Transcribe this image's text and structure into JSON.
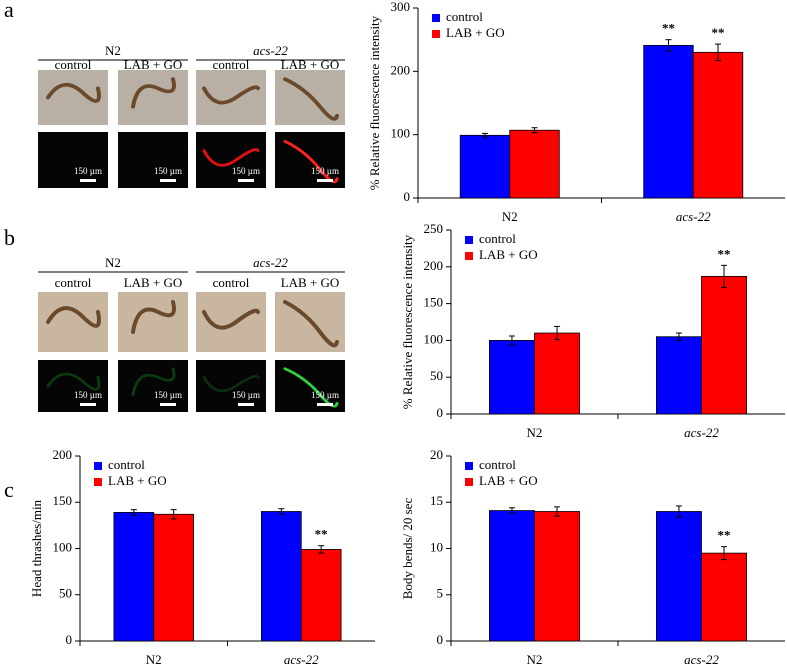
{
  "panel_labels": [
    "a",
    "b",
    "c"
  ],
  "image_panels": [
    {
      "groups": [
        "N2",
        "acs-22"
      ],
      "conditions": [
        "control",
        "LAB + GO",
        "control",
        "LAB + GO"
      ],
      "scale_labels": [
        "150 µm",
        "150 µm",
        "150 µm",
        "150 µm"
      ]
    },
    {
      "groups": [
        "N2",
        "acs-22"
      ],
      "conditions": [
        "control",
        "LAB + GO",
        "control",
        "LAB + GO"
      ],
      "scale_labels": [
        "150 µm",
        "150 µm",
        "150 µm",
        "150 µm"
      ]
    }
  ],
  "chart_data": [
    {
      "type": "bar",
      "ylabel": "% Relative fluorescence intensity",
      "categories": [
        "N2",
        "acs-22"
      ],
      "series": [
        {
          "name": "control",
          "color": "#0000ff",
          "values": [
            99,
            241
          ],
          "errors": [
            3,
            9
          ],
          "annotations": [
            null,
            "**"
          ]
        },
        {
          "name": "LAB + GO",
          "color": "#ff0000",
          "values": [
            107,
            230
          ],
          "errors": [
            4,
            13
          ],
          "annotations": [
            null,
            "**"
          ]
        }
      ],
      "ylim": [
        0,
        300
      ],
      "yticks": [
        0,
        100,
        200,
        300
      ],
      "legend": "upper-left"
    },
    {
      "type": "bar",
      "ylabel": "% Relative fluorescence intensity",
      "categories": [
        "N2",
        "acs-22"
      ],
      "series": [
        {
          "name": "control",
          "color": "#0000ff",
          "values": [
            100,
            105
          ],
          "errors": [
            6,
            5
          ],
          "annotations": [
            null,
            null
          ]
        },
        {
          "name": "LAB + GO",
          "color": "#ff0000",
          "values": [
            110,
            187
          ],
          "errors": [
            9,
            15
          ],
          "annotations": [
            null,
            "**"
          ]
        }
      ],
      "ylim": [
        0,
        250
      ],
      "yticks": [
        0,
        50,
        100,
        150,
        200,
        250
      ],
      "legend": "upper-left"
    },
    {
      "type": "bar",
      "ylabel": "Head thrashes/min",
      "categories": [
        "N2",
        "acs-22"
      ],
      "series": [
        {
          "name": "control",
          "color": "#0000ff",
          "values": [
            139,
            140
          ],
          "errors": [
            3,
            3
          ],
          "annotations": [
            null,
            null
          ]
        },
        {
          "name": "LAB + GO",
          "color": "#ff0000",
          "values": [
            137,
            99
          ],
          "errors": [
            5,
            4
          ],
          "annotations": [
            null,
            "**"
          ]
        }
      ],
      "ylim": [
        0,
        200
      ],
      "yticks": [
        0,
        50,
        100,
        150,
        200
      ],
      "legend": "upper-left"
    },
    {
      "type": "bar",
      "ylabel": "Body bends/ 20 sec",
      "categories": [
        "N2",
        "acs-22"
      ],
      "series": [
        {
          "name": "control",
          "color": "#0000ff",
          "values": [
            14.1,
            14
          ],
          "errors": [
            0.3,
            0.6
          ],
          "annotations": [
            null,
            null
          ]
        },
        {
          "name": "LAB + GO",
          "color": "#ff0000",
          "values": [
            14,
            9.5
          ],
          "errors": [
            0.5,
            0.7
          ],
          "annotations": [
            null,
            "**"
          ]
        }
      ],
      "ylim": [
        0,
        20
      ],
      "yticks": [
        0,
        5,
        10,
        15,
        20
      ],
      "legend": "upper-left"
    }
  ]
}
